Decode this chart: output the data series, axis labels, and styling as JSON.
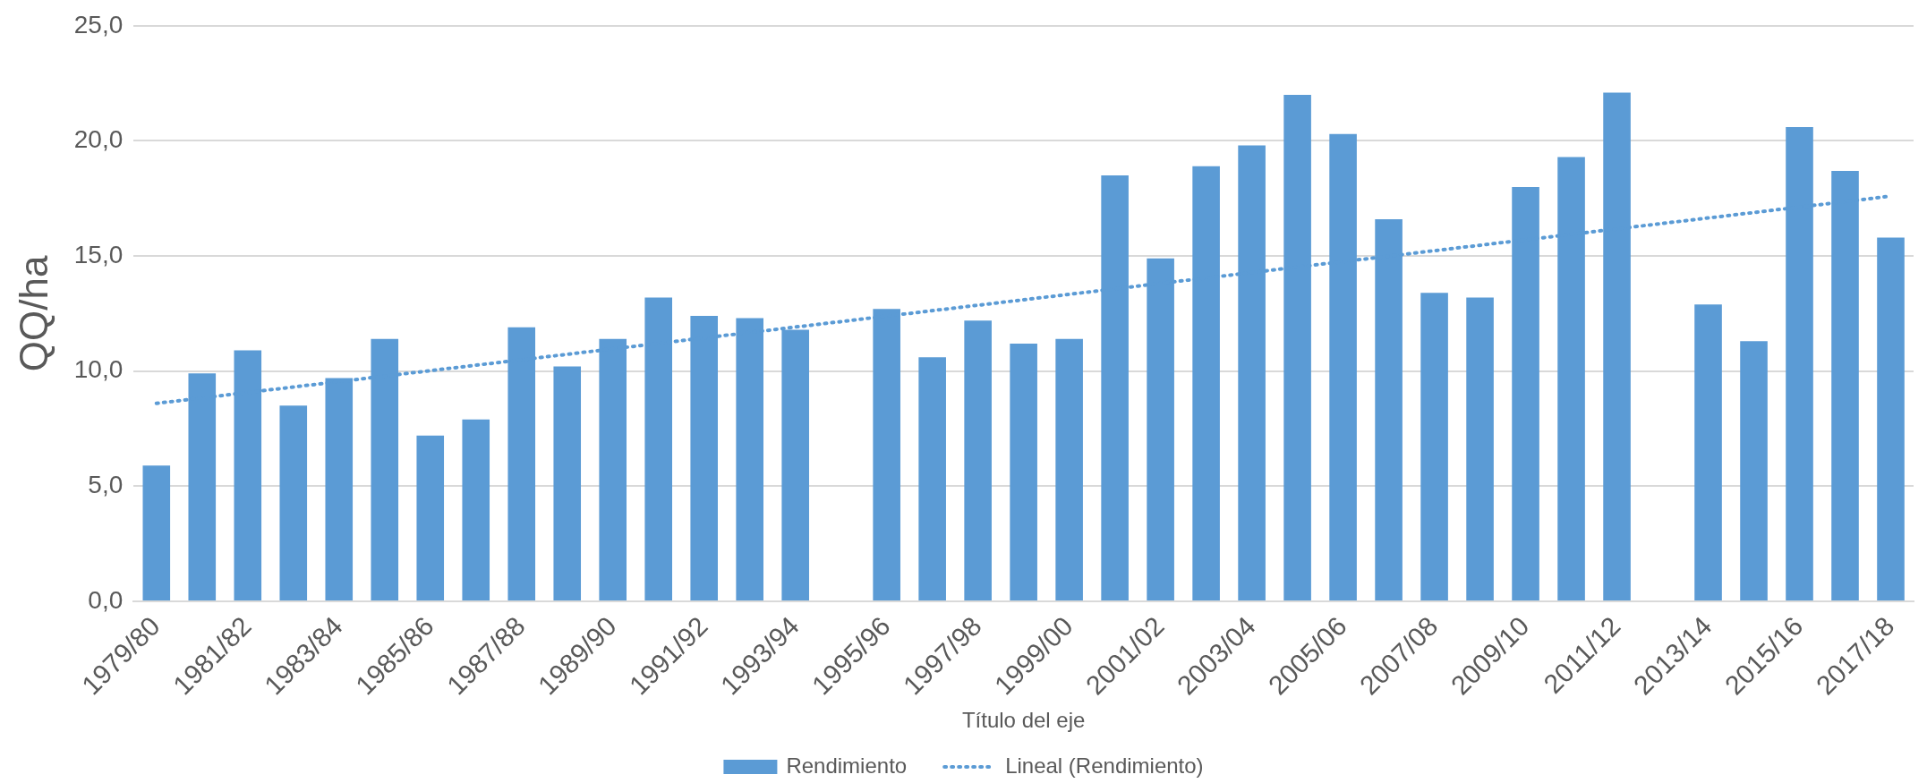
{
  "chart_data": {
    "type": "bar",
    "categories": [
      "1979/80",
      null,
      "1981/82",
      null,
      "1983/84",
      null,
      "1985/86",
      null,
      "1987/88",
      null,
      "1989/90",
      null,
      "1991/92",
      null,
      "1993/94",
      null,
      "1995/96",
      null,
      "1997/98",
      null,
      "1999/00",
      null,
      "2001/02",
      null,
      "2003/04",
      null,
      "2005/06",
      null,
      "2007/08",
      null,
      "2009/10",
      null,
      "2011/12",
      null,
      "2013/14",
      null,
      "2015/16",
      null,
      "2017/18"
    ],
    "series": [
      {
        "name": "Rendimiento",
        "color": "#5b9bd5",
        "values": [
          5.9,
          9.9,
          10.9,
          8.5,
          9.7,
          11.4,
          7.2,
          7.9,
          11.9,
          10.2,
          11.4,
          13.2,
          12.4,
          12.3,
          11.8,
          null,
          12.7,
          10.6,
          12.2,
          11.2,
          11.4,
          18.5,
          14.9,
          18.9,
          19.8,
          22.0,
          20.3,
          16.6,
          13.4,
          13.2,
          18.0,
          19.3,
          22.1,
          null,
          12.9,
          11.3,
          20.6,
          18.7,
          15.8
        ]
      },
      {
        "name": "Lineal (Rendimiento)",
        "type": "line",
        "color": "#5b9bd5",
        "line_style": "dotted",
        "marker": "none",
        "x": [
          "1979/80",
          "2017/18"
        ],
        "values": [
          8.6,
          17.6
        ]
      }
    ],
    "xlabel": "Título del eje",
    "ylabel": "QQ/ha",
    "ylim": [
      0,
      25
    ],
    "yticks": [
      {
        "value": 0,
        "label": "0,0"
      },
      {
        "value": 5,
        "label": "5,0"
      },
      {
        "value": 10,
        "label": "10,0"
      },
      {
        "value": 15,
        "label": "15,0"
      },
      {
        "value": 20,
        "label": "20,0"
      },
      {
        "value": 25,
        "label": "25,0"
      }
    ],
    "grid": "y",
    "legend": "bottom"
  }
}
